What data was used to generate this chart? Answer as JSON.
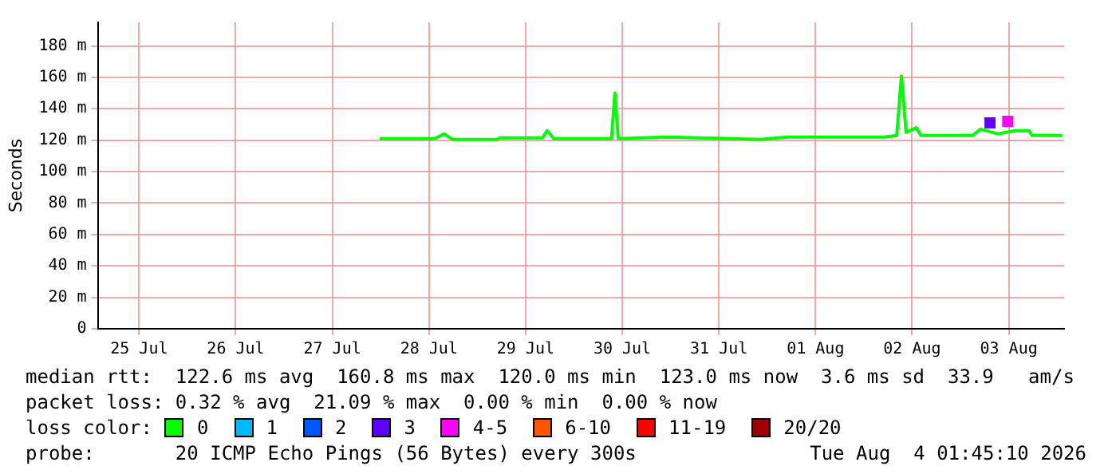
{
  "chart_data": {
    "type": "line",
    "ylabel": "Seconds",
    "legend_title": "loss color:",
    "legend": "bottom",
    "grid": true,
    "marker": "none",
    "line_style": "solid",
    "xlim": [
      "2026-07-25T01:45",
      "2026-08-04T01:45"
    ],
    "xticks": [
      {
        "value": "2026-07-25T12:00",
        "label": "25 Jul"
      },
      {
        "value": "2026-07-26T12:00",
        "label": "26 Jul"
      },
      {
        "value": "2026-07-27T12:00",
        "label": "27 Jul"
      },
      {
        "value": "2026-07-28T12:00",
        "label": "28 Jul"
      },
      {
        "value": "2026-07-29T12:00",
        "label": "29 Jul"
      },
      {
        "value": "2026-07-30T12:00",
        "label": "30 Jul"
      },
      {
        "value": "2026-07-31T12:00",
        "label": "31 Jul"
      },
      {
        "value": "2026-08-01T12:00",
        "label": "01 Aug"
      },
      {
        "value": "2026-08-02T12:00",
        "label": "02 Aug"
      },
      {
        "value": "2026-08-03T12:00",
        "label": "03 Aug"
      }
    ],
    "ylim": [
      0,
      195
    ],
    "yticks": [
      0,
      {
        "value": 20,
        "label": "20 m"
      },
      {
        "value": 40,
        "label": "40 m"
      },
      {
        "value": 60,
        "label": "60 m"
      },
      {
        "value": 80,
        "label": "80 m"
      },
      {
        "value": 100,
        "label": "100 m"
      },
      {
        "value": 120,
        "label": "120 m"
      },
      {
        "value": 140,
        "label": "140 m"
      },
      {
        "value": 160,
        "label": "160 m"
      },
      {
        "value": 180,
        "label": "180 m"
      }
    ],
    "series": [
      {
        "name": "0",
        "color": "#00ff00",
        "x": [
          "2026-07-27T23:45",
          "2026-07-28T05:30",
          "2026-07-28T13:20",
          "2026-07-28T15:45",
          "2026-07-28T17:45",
          "2026-07-29T05:00",
          "2026-07-29T05:30",
          "2026-07-29T16:10",
          "2026-07-29T17:20",
          "2026-07-29T19:00",
          "2026-07-30T09:20",
          "2026-07-30T10:10",
          "2026-07-30T11:00",
          "2026-07-30T23:00",
          "2026-07-31T07:00",
          "2026-07-31T22:10",
          "2026-08-01T05:00",
          "2026-08-02T05:00",
          "2026-08-02T08:10",
          "2026-08-02T09:20",
          "2026-08-02T10:30",
          "2026-08-02T13:00",
          "2026-08-02T14:10",
          "2026-08-03T03:00",
          "2026-08-03T05:00",
          "2026-08-03T09:20",
          "2026-08-03T13:20",
          "2026-08-03T17:00",
          "2026-08-03T17:45",
          "2026-08-04T01:10"
        ],
        "values": [
          121,
          121,
          121,
          124,
          120.5,
          120.5,
          121.5,
          121.5,
          126,
          121,
          121,
          150,
          121,
          122,
          121.5,
          120.5,
          122,
          122,
          123,
          160.8,
          125,
          128,
          123,
          123,
          127,
          124,
          126,
          126,
          123,
          123
        ]
      },
      {
        "name": "1",
        "color": "#00b8ff"
      },
      {
        "name": "2",
        "color": "#0059ff"
      },
      {
        "name": "3",
        "color": "#5e00ff",
        "type": "scatter",
        "marker": "square",
        "x": [
          "2026-08-03T07:20"
        ],
        "values": [
          131
        ]
      },
      {
        "name": "4-5",
        "color": "#ff00ff",
        "type": "scatter",
        "marker": "square",
        "x": [
          "2026-08-03T11:45"
        ],
        "values": [
          132
        ]
      },
      {
        "name": "6-10",
        "color": "#ff5500"
      },
      {
        "name": "11-19",
        "color": "#ff0000"
      },
      {
        "name": "20/20",
        "color": "#a10000"
      }
    ],
    "annotations": [
      "median rtt:  122.6 ms avg  160.8 ms max  120.0 ms min  123.0 ms now  3.6 ms sd  33.9   am/s",
      "packet loss: 0.32 % avg  21.09 % max  0.00 % min  0.00 % now",
      "probe:       20 ICMP Echo Pings (56 Bytes) every 300s",
      "Tue Aug  4 01:45:10 2026"
    ]
  }
}
